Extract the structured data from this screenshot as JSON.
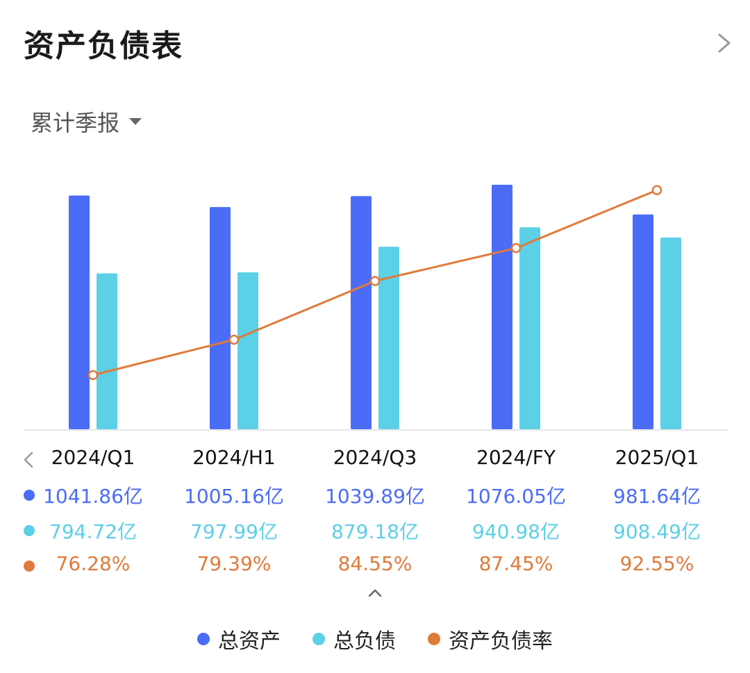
{
  "header": {
    "title": "资产负债表"
  },
  "period_selector": {
    "label": "累计季报"
  },
  "colors": {
    "total_assets": "#4B6CF7",
    "total_liabilities": "#5BD0E6",
    "ratio": "#E07A3A",
    "axis": "#e6e6e6"
  },
  "chart_data": {
    "type": "bar",
    "categories": [
      "2024/Q1",
      "2024/H1",
      "2024/Q3",
      "2024/FY",
      "2025/Q1"
    ],
    "series": [
      {
        "name": "总资产",
        "type": "bar",
        "values": [
          1041.86,
          1005.16,
          1039.89,
          1076.05,
          981.64
        ],
        "labels": [
          "1041.86亿",
          "1005.16亿",
          "1039.89亿",
          "1076.05亿",
          "981.64亿"
        ]
      },
      {
        "name": "总负债",
        "type": "bar",
        "values": [
          794.72,
          797.99,
          879.18,
          940.98,
          908.49
        ],
        "labels": [
          "794.72亿",
          "797.99亿",
          "879.18亿",
          "940.98亿",
          "908.49亿"
        ]
      },
      {
        "name": "资产负债率",
        "type": "line",
        "values": [
          76.28,
          79.39,
          84.55,
          87.45,
          92.55
        ],
        "labels": [
          "76.28%",
          "79.39%",
          "84.55%",
          "87.45%",
          "92.55%"
        ]
      }
    ],
    "legend_position": "bottom"
  }
}
